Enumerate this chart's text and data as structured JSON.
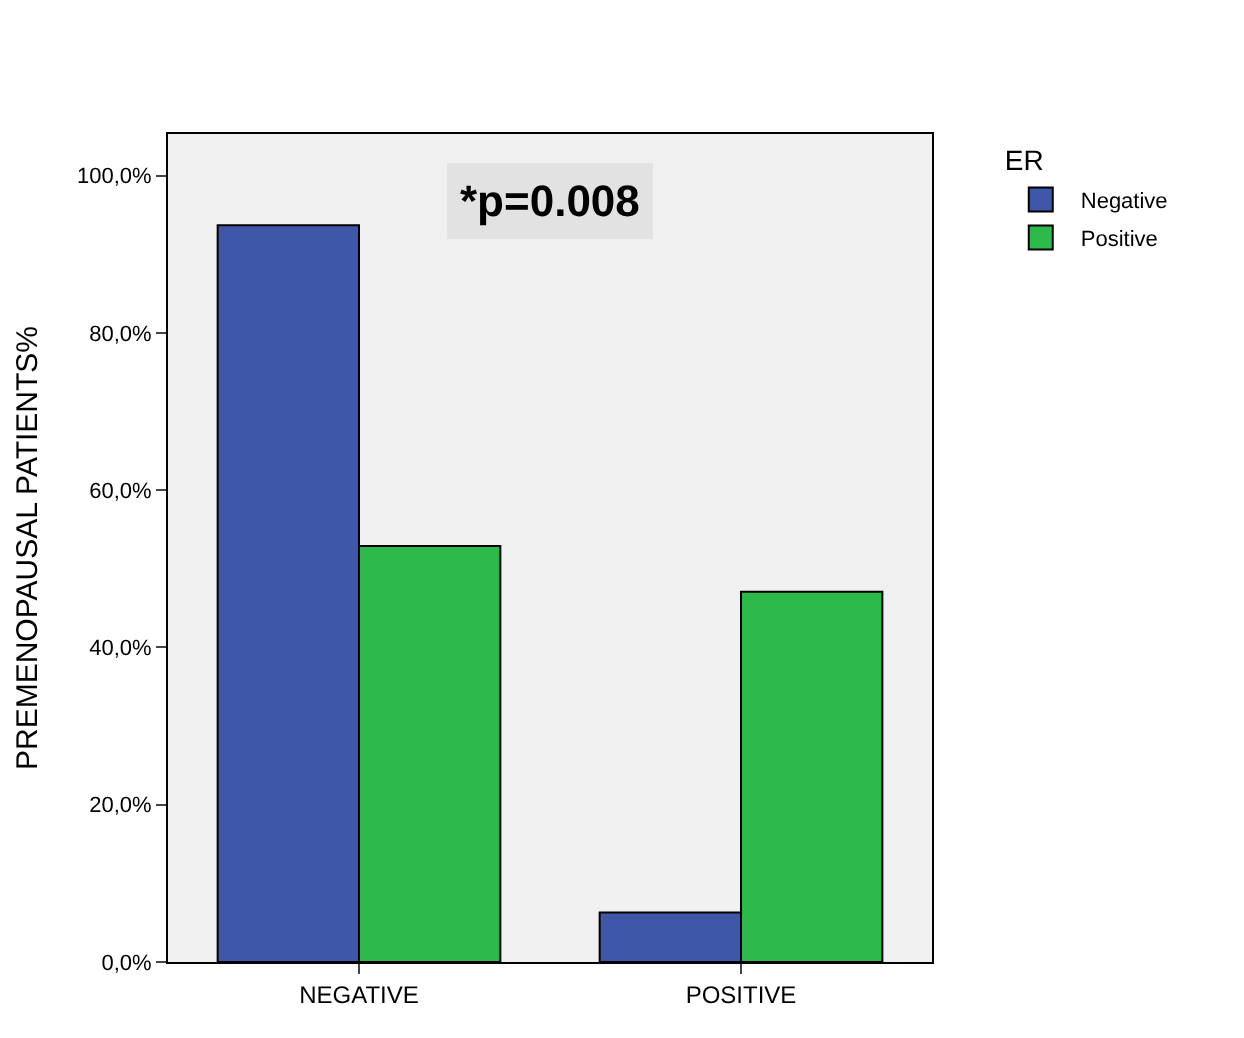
{
  "chart_data": {
    "type": "bar",
    "ylabel": "PREMENOPAUSAL PATIENTS%",
    "legend_title": "ER",
    "categories": [
      "NEGATIVE",
      "POSITIVE"
    ],
    "series": [
      {
        "name": "Negative",
        "color": "#3f57a9",
        "values": [
          93.7,
          6.3
        ]
      },
      {
        "name": "Positive",
        "color": "#2db84a",
        "values": [
          52.9,
          47.1
        ]
      }
    ],
    "ylim": [
      0,
      105.3
    ],
    "yticks": [
      {
        "value": 0,
        "label": "0,0%"
      },
      {
        "value": 20,
        "label": "20,0%"
      },
      {
        "value": 40,
        "label": "40,0%"
      },
      {
        "value": 60,
        "label": "60,0%"
      },
      {
        "value": 80,
        "label": "80,0%"
      },
      {
        "value": 100,
        "label": "100,0%"
      }
    ],
    "annotations": [
      "*p=0.008"
    ],
    "grid": false,
    "legend": "top right"
  }
}
